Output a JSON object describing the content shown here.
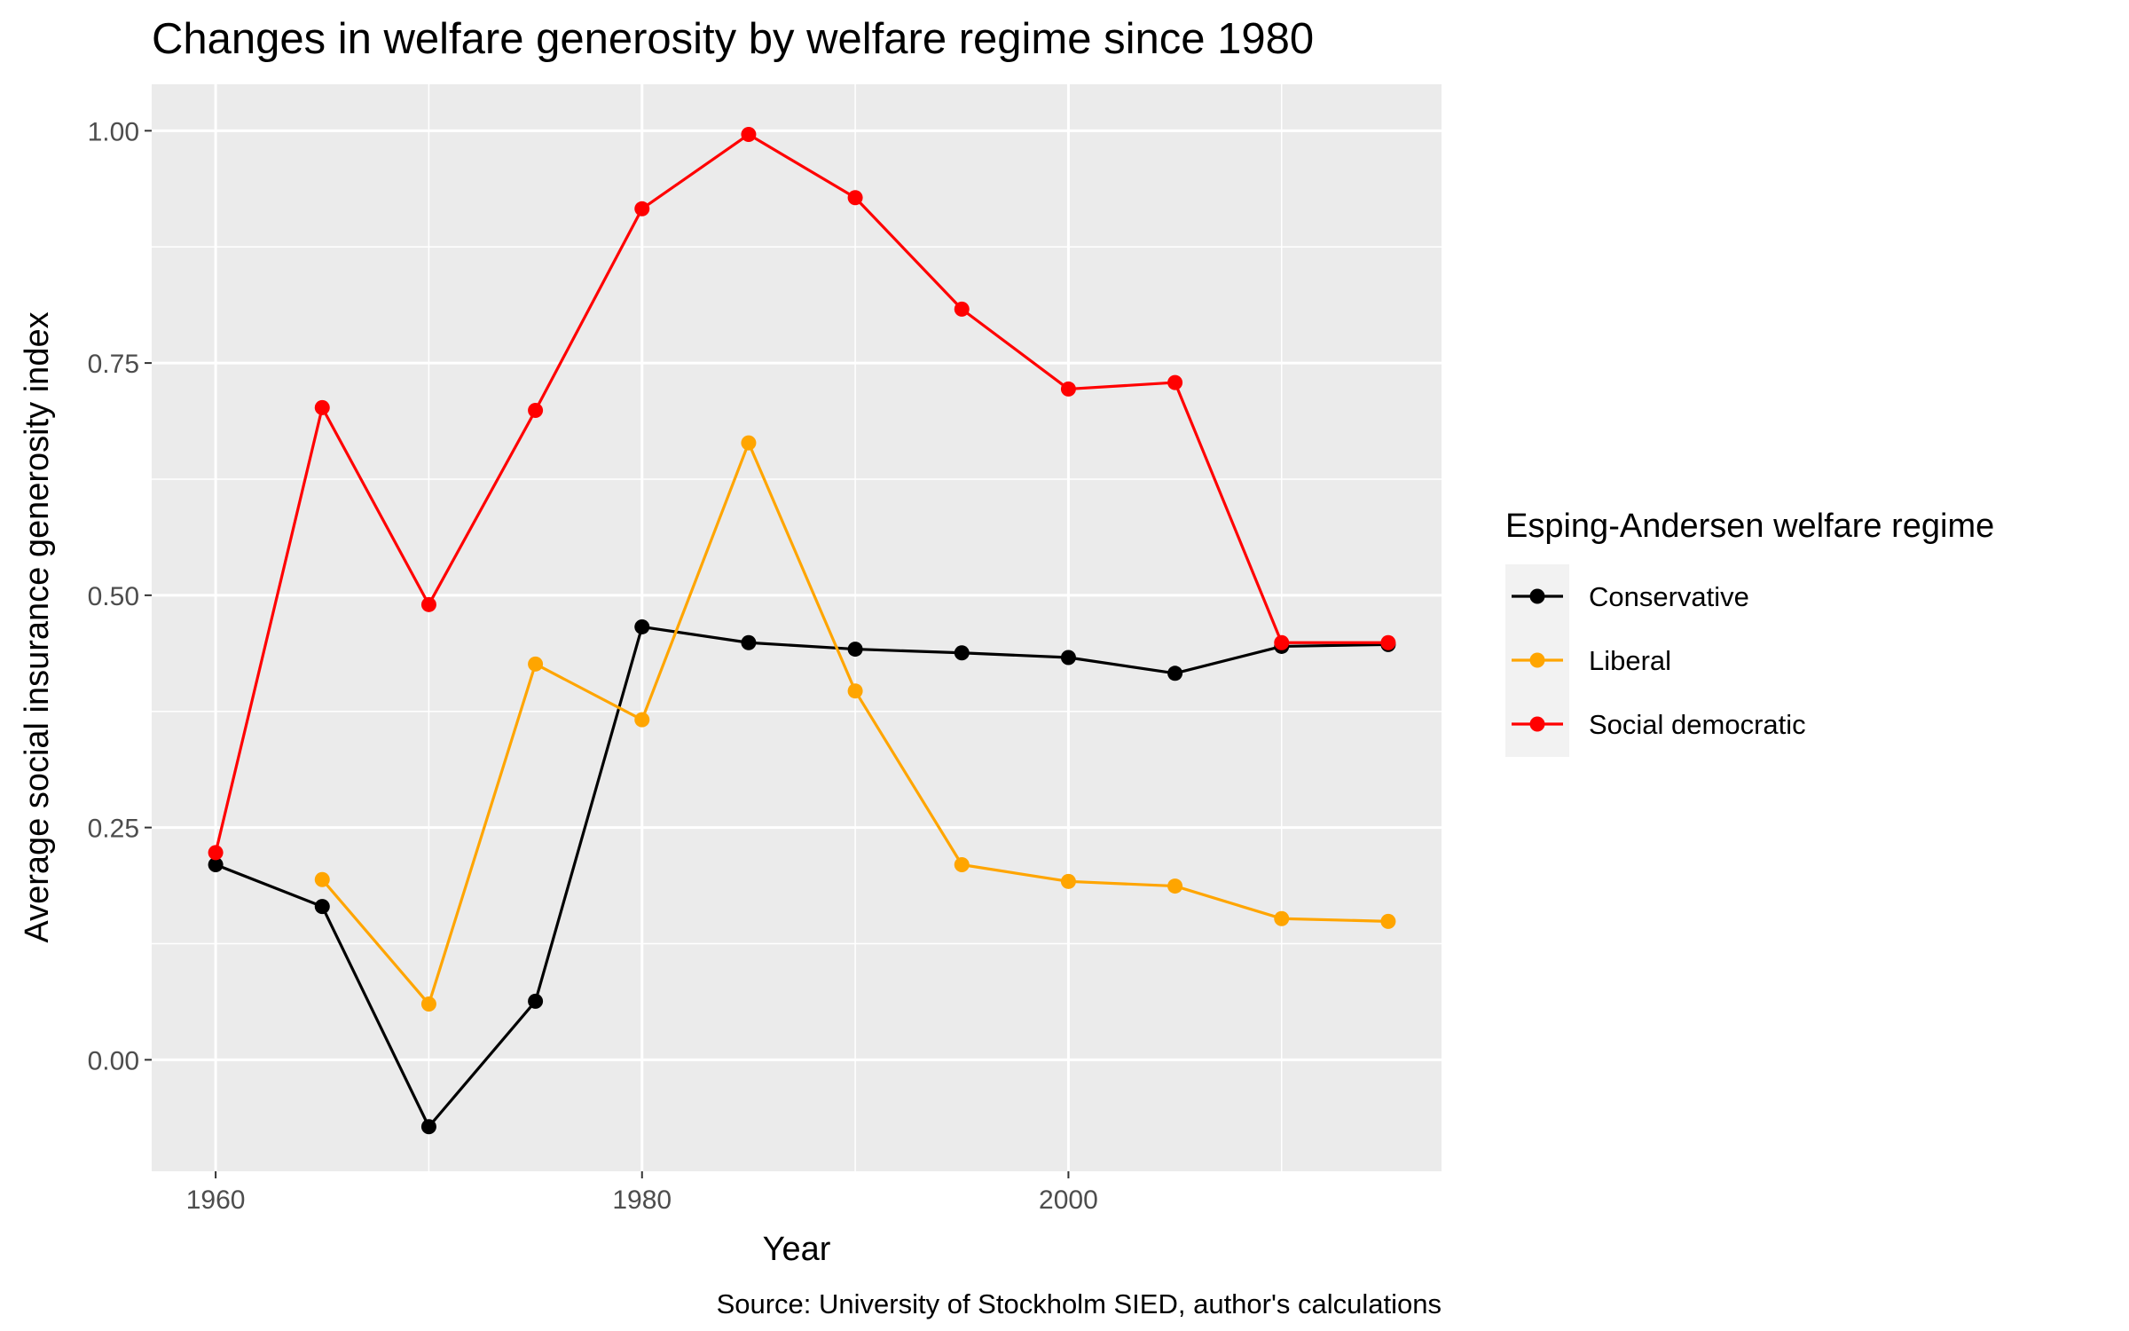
{
  "chart_data": {
    "type": "line",
    "title": "Changes in welfare generosity by welfare regime since 1980",
    "xlabel": "Year",
    "ylabel": "Average social insurance generosity index",
    "caption": "Source: University of Stockholm SIED, author's calculations",
    "xlim": [
      1957,
      2017.5
    ],
    "ylim": [
      -0.12,
      1.05
    ],
    "x_ticks": [
      1960,
      1980,
      2000
    ],
    "x_tick_labels": [
      "1960",
      "1980",
      "2000"
    ],
    "y_ticks": [
      0,
      0.25,
      0.5,
      0.75,
      1.0
    ],
    "y_tick_labels": [
      "0.00",
      "0.25",
      "0.50",
      "0.75",
      "1.00"
    ],
    "grid": true,
    "background": "#ebebeb",
    "legend": {
      "title": "Esping-Andersen welfare regime",
      "position": "right"
    },
    "x": [
      1960,
      1965,
      1970,
      1975,
      1980,
      1985,
      1990,
      1995,
      2000,
      2005,
      2010,
      2015
    ],
    "series": [
      {
        "name": "Conservative",
        "color": "#000000",
        "values": [
          0.21,
          0.165,
          -0.072,
          0.063,
          0.466,
          0.449,
          0.442,
          0.438,
          0.433,
          0.416,
          0.445,
          0.447
        ]
      },
      {
        "name": "Liberal",
        "color": "#ffa500",
        "values": [
          null,
          0.194,
          0.06,
          0.426,
          0.366,
          0.664,
          0.397,
          0.21,
          0.192,
          0.187,
          0.152,
          0.149
        ]
      },
      {
        "name": "Social democratic",
        "color": "#ff0000",
        "values": [
          0.223,
          0.702,
          0.49,
          0.699,
          0.916,
          0.996,
          0.928,
          0.808,
          0.722,
          0.729,
          0.449,
          0.449
        ]
      }
    ]
  }
}
